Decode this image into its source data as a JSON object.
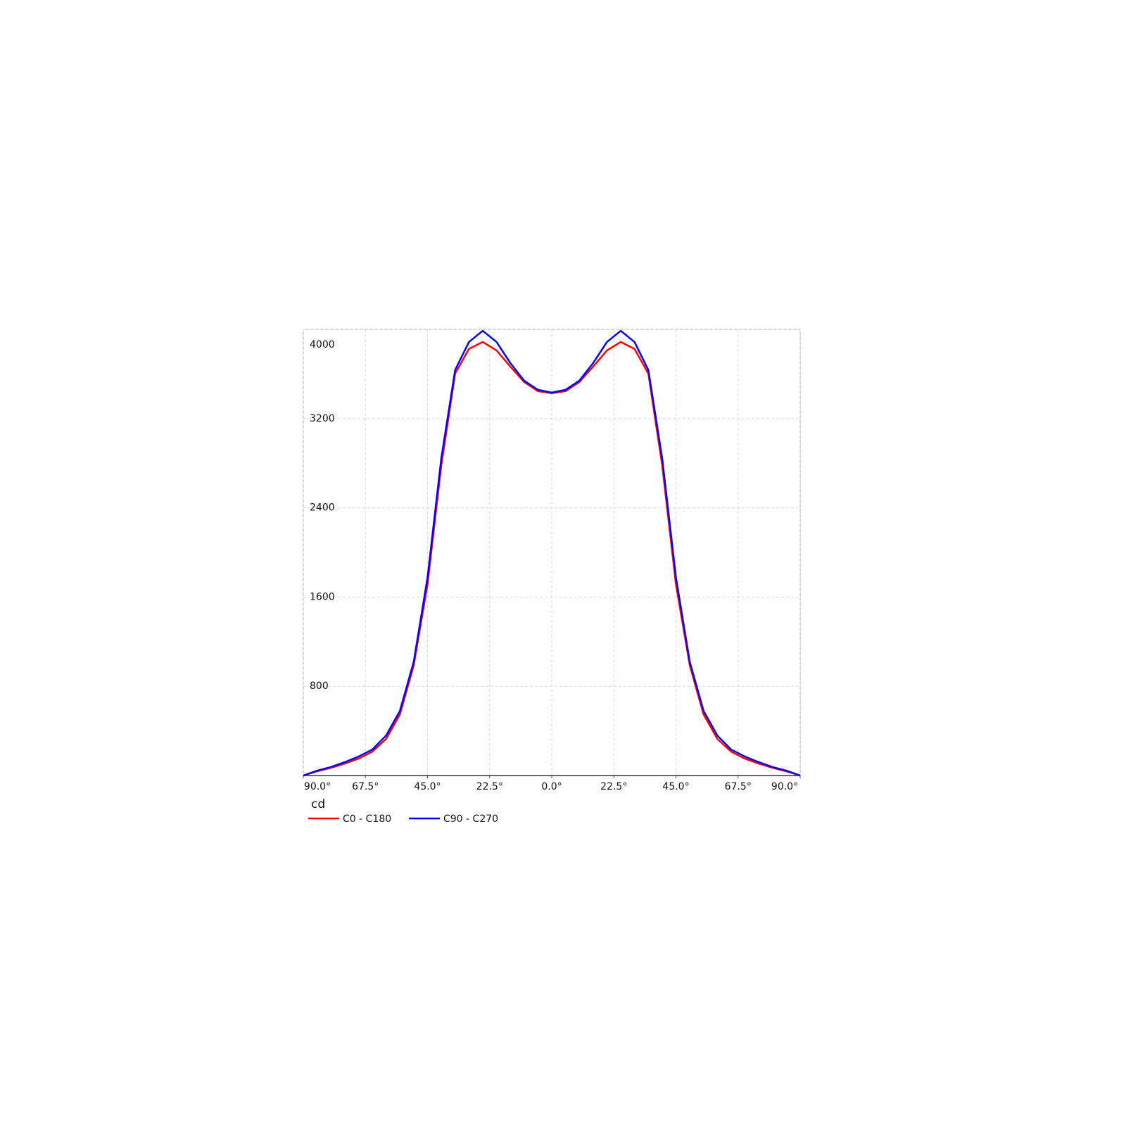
{
  "chart_data": {
    "type": "line",
    "y_label": "cd",
    "x": [
      -90,
      -85,
      -80,
      -75,
      -70,
      -65,
      -60,
      -55,
      -50,
      -45,
      -40,
      -35,
      -30,
      -25,
      -20,
      -15,
      -10,
      -5,
      0,
      5,
      10,
      15,
      20,
      25,
      30,
      35,
      40,
      45,
      50,
      55,
      60,
      65,
      70,
      75,
      80,
      85,
      90
    ],
    "series": [
      {
        "name": "C0 - C180",
        "color": "#ff0000",
        "values": [
          0,
          38,
          69,
          107,
          151,
          214,
          328,
          548,
          989,
          1713,
          2784,
          3603,
          3824,
          3887,
          3811,
          3666,
          3528,
          3446,
          3427,
          3446,
          3528,
          3666,
          3811,
          3887,
          3824,
          3603,
          2784,
          1713,
          989,
          548,
          328,
          214,
          151,
          107,
          69,
          38,
          0
        ]
      },
      {
        "name": "C90 - C270",
        "color": "#0000ff",
        "values": [
          0,
          44,
          76,
          120,
          170,
          233,
          359,
          580,
          1020,
          1776,
          2847,
          3635,
          3887,
          3987,
          3887,
          3698,
          3540,
          3458,
          3433,
          3458,
          3540,
          3698,
          3887,
          3987,
          3887,
          3635,
          2847,
          1776,
          1020,
          580,
          359,
          233,
          170,
          120,
          76,
          44,
          0
        ]
      }
    ],
    "xlim": [
      -90,
      90
    ],
    "xticks": [
      {
        "value": -90,
        "label": "90.0°"
      },
      {
        "value": -67.5,
        "label": "67.5°"
      },
      {
        "value": -45,
        "label": "45.0°"
      },
      {
        "value": -22.5,
        "label": "22.5°"
      },
      {
        "value": 0,
        "label": "0.0°"
      },
      {
        "value": 22.5,
        "label": "22.5°"
      },
      {
        "value": 45,
        "label": "45.0°"
      },
      {
        "value": 67.5,
        "label": "67.5°"
      },
      {
        "value": 90,
        "label": "90.0°"
      }
    ],
    "ylim": [
      0,
      4000
    ],
    "yticks": [
      800,
      1600,
      2400,
      3200,
      4000
    ],
    "grid": true
  }
}
